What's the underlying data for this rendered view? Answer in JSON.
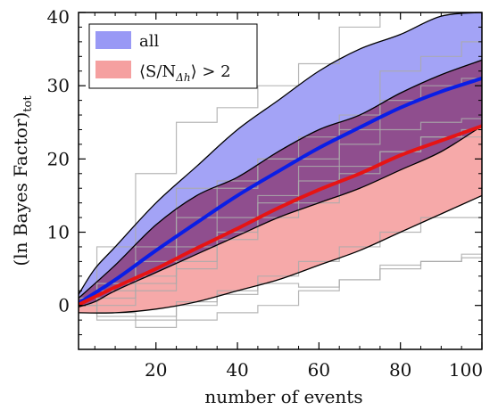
{
  "chart_data": {
    "type": "area",
    "title": "",
    "xlabel": "number of events",
    "ylabel": "(ln Bayes Factor)",
    "ylabel_subscript": "tot",
    "xlim": [
      1,
      100
    ],
    "ylim": [
      -6,
      40
    ],
    "x_ticks": [
      20,
      40,
      60,
      80,
      100
    ],
    "y_ticks": [
      0,
      10,
      20,
      30,
      40
    ],
    "grid": false,
    "legend_position": "top-left",
    "legend": [
      {
        "key": "all",
        "label": "all",
        "color": "#0000ff"
      },
      {
        "key": "snr",
        "label_prefix": "⟨S/N",
        "label_subscript": "Δh",
        "label_suffix": "⟩ > 2",
        "color": "#ff0000"
      }
    ],
    "colors": {
      "all_fill": "#9999f5",
      "snr_fill": "#f5a0a0",
      "overlap_fill": "#8a4a8c",
      "all_line": "#0a1ee6",
      "snr_line": "#e61414",
      "realization_line": "#aaaaaa",
      "band_edge": "#000000"
    },
    "series": [
      {
        "name": "all",
        "role": "median",
        "x": [
          1,
          10,
          20,
          30,
          40,
          50,
          60,
          70,
          80,
          90,
          100
        ],
        "values": [
          0.3,
          3.5,
          7.5,
          11.3,
          15.0,
          18.3,
          21.5,
          24.3,
          27.0,
          29.2,
          31.0
        ]
      },
      {
        "name": "all",
        "role": "band",
        "x": [
          1,
          5,
          10,
          20,
          30,
          40,
          50,
          60,
          70,
          80,
          90,
          100
        ],
        "upper": [
          1.5,
          5.0,
          8.0,
          14.0,
          19.0,
          24.0,
          28.0,
          32.0,
          35.0,
          37.0,
          39.5,
          40.0
        ],
        "lower": [
          -0.2,
          0.5,
          2.0,
          4.5,
          7.0,
          9.5,
          12.0,
          14.0,
          16.0,
          18.5,
          21.0,
          24.5
        ]
      },
      {
        "name": "⟨S/NΔh⟩ > 2",
        "role": "median",
        "x": [
          1,
          10,
          20,
          30,
          40,
          50,
          60,
          70,
          80,
          90,
          100
        ],
        "values": [
          0.1,
          2.5,
          5.0,
          7.8,
          10.5,
          13.3,
          15.8,
          18.0,
          20.5,
          22.5,
          24.5
        ]
      },
      {
        "name": "⟨S/NΔh⟩ > 2",
        "role": "band",
        "x": [
          1,
          10,
          20,
          30,
          40,
          50,
          60,
          70,
          80,
          90,
          100
        ],
        "upper": [
          1.0,
          5.5,
          11.0,
          15.0,
          17.5,
          21.0,
          24.0,
          26.0,
          29.0,
          31.5,
          33.5
        ],
        "lower": [
          -1.0,
          -1.0,
          -0.5,
          0.5,
          2.0,
          3.5,
          5.5,
          7.5,
          10.0,
          12.5,
          15.0
        ]
      },
      {
        "name": "",
        "role": "realization",
        "x": [
          1,
          10,
          20,
          30,
          40,
          50,
          60,
          70,
          80,
          90,
          100
        ],
        "values": [
          1.0,
          8.0,
          18.0,
          25.0,
          27.0,
          30.0,
          33.0,
          38.0,
          41.0,
          42.0,
          43.0
        ]
      },
      {
        "name": "",
        "role": "realization",
        "x": [
          1,
          10,
          20,
          30,
          40,
          50,
          60,
          70,
          80,
          90,
          100
        ],
        "values": [
          0.0,
          3.0,
          6.0,
          16.0,
          17.0,
          20.0,
          20.0,
          24.0,
          32.0,
          34.0,
          36.0
        ]
      },
      {
        "name": "",
        "role": "realization",
        "x": [
          1,
          10,
          20,
          30,
          40,
          50,
          60,
          70,
          80,
          90,
          100
        ],
        "values": [
          1.0,
          3.0,
          8.0,
          12.0,
          16.0,
          20.0,
          23.0,
          26.0,
          28.0,
          30.0,
          31.0
        ]
      },
      {
        "name": "",
        "role": "realization",
        "x": [
          1,
          10,
          20,
          30,
          40,
          50,
          60,
          70,
          80,
          90,
          100
        ],
        "values": [
          0.0,
          2.0,
          4.0,
          8.0,
          12.0,
          15.0,
          19.0,
          22.0,
          24.0,
          25.0,
          25.5
        ]
      },
      {
        "name": "",
        "role": "realization",
        "x": [
          1,
          10,
          20,
          30,
          40,
          50,
          60,
          70,
          80,
          90,
          100
        ],
        "values": [
          0.0,
          1.0,
          3.0,
          6.0,
          10.0,
          14.0,
          17.0,
          19.0,
          21.0,
          23.0,
          24.0
        ]
      },
      {
        "name": "",
        "role": "realization",
        "x": [
          1,
          10,
          20,
          30,
          40,
          50,
          60,
          70,
          80,
          90,
          100
        ],
        "values": [
          0.0,
          0.0,
          2.0,
          5.0,
          9.0,
          12.0,
          14.0,
          18.0,
          21.0,
          23.0,
          23.0
        ]
      },
      {
        "name": "",
        "role": "realization",
        "x": [
          1,
          10,
          20,
          30,
          40,
          50,
          60,
          70,
          80,
          90,
          100
        ],
        "values": [
          0.0,
          -1.0,
          -1.5,
          0.0,
          2.0,
          4.0,
          6.0,
          8.0,
          10.0,
          12.0,
          12.0
        ]
      },
      {
        "name": "",
        "role": "realization",
        "x": [
          1,
          10,
          20,
          30,
          40,
          50,
          60,
          70,
          80,
          90,
          100
        ],
        "values": [
          0.0,
          -1.5,
          -3.0,
          -2.0,
          -1.0,
          0.0,
          2.0,
          3.5,
          5.0,
          6.0,
          6.5
        ]
      },
      {
        "name": "",
        "role": "realization",
        "x": [
          1,
          10,
          20,
          30,
          40,
          50,
          60,
          70,
          80,
          90,
          100
        ],
        "values": [
          0.0,
          -2.0,
          -2.0,
          0.5,
          1.5,
          3.0,
          2.5,
          3.5,
          5.5,
          6.0,
          7.0
        ]
      }
    ]
  }
}
